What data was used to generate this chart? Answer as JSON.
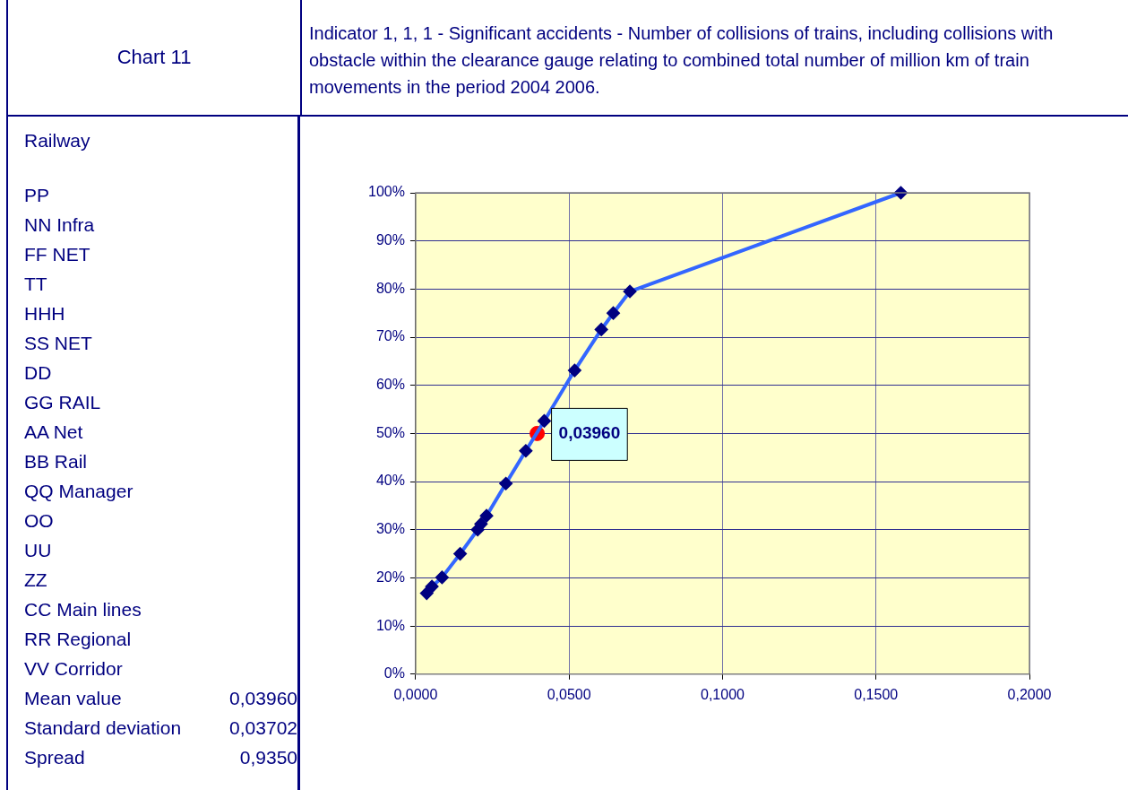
{
  "chart_data": {
    "type": "line",
    "title": "Chart 11",
    "subtitle": "Indicator 1, 1, 1 - Significant accidents - Number of collisions of trains, including collisions with obstacle within the clearance gauge relating to combined total  number of million km of train movements in the period 2004 2006.",
    "series": [
      {
        "color": "#3366ff",
        "marker": "diamond",
        "x": [
          0.0036,
          0.0053,
          0.0086,
          0.0145,
          0.0202,
          0.0213,
          0.0231,
          0.0294,
          0.0359,
          0.0419,
          0.0518,
          0.0605,
          0.0644,
          0.0698,
          0.1581
        ],
        "values": [
          16.8,
          18.2,
          20.1,
          25.0,
          30.0,
          31.2,
          32.9,
          39.6,
          46.4,
          52.6,
          63.1,
          71.6,
          75.0,
          79.5,
          100
        ]
      },
      {
        "type": "scatter",
        "color": "#ff0000",
        "marker": "circle",
        "x": [
          0.0396
        ],
        "values": [
          50
        ]
      }
    ],
    "xlim": [
      0,
      0.2
    ],
    "xticks": [
      {
        "value": 0,
        "label": "0,0000"
      },
      {
        "value": 0.05,
        "label": "0,0500"
      },
      {
        "value": 0.1,
        "label": "0,1000"
      },
      {
        "value": 0.15,
        "label": "0,1500"
      },
      {
        "value": 0.2,
        "label": "0,2000"
      }
    ],
    "ylim": [
      0,
      100
    ],
    "yticks": [
      {
        "value": 0,
        "label": "0%"
      },
      {
        "value": 10,
        "label": "10%"
      },
      {
        "value": 20,
        "label": "20%"
      },
      {
        "value": 30,
        "label": "30%"
      },
      {
        "value": 40,
        "label": "40%"
      },
      {
        "value": 50,
        "label": "50%"
      },
      {
        "value": 60,
        "label": "60%"
      },
      {
        "value": 70,
        "label": "70%"
      },
      {
        "value": 80,
        "label": "80%"
      },
      {
        "value": 90,
        "label": "90%"
      },
      {
        "value": 100,
        "label": "100%"
      }
    ],
    "grid": true,
    "legend": false,
    "annotations": [
      {
        "text": "0,03960",
        "x": 0.0396,
        "y": 50
      },
      "Railway",
      "PP",
      "NN Infra",
      "FF NET",
      "TT",
      "HHH",
      "SS NET",
      "DD",
      "GG RAIL",
      "AA Net",
      "BB Rail",
      "QQ Manager",
      "OO",
      "UU",
      "ZZ",
      "CC Main lines",
      "RR Regional",
      "VV Corridor",
      "Mean value\t0,03960",
      "Standard deviation\t0,03702",
      "Spread\t0,9350"
    ]
  }
}
